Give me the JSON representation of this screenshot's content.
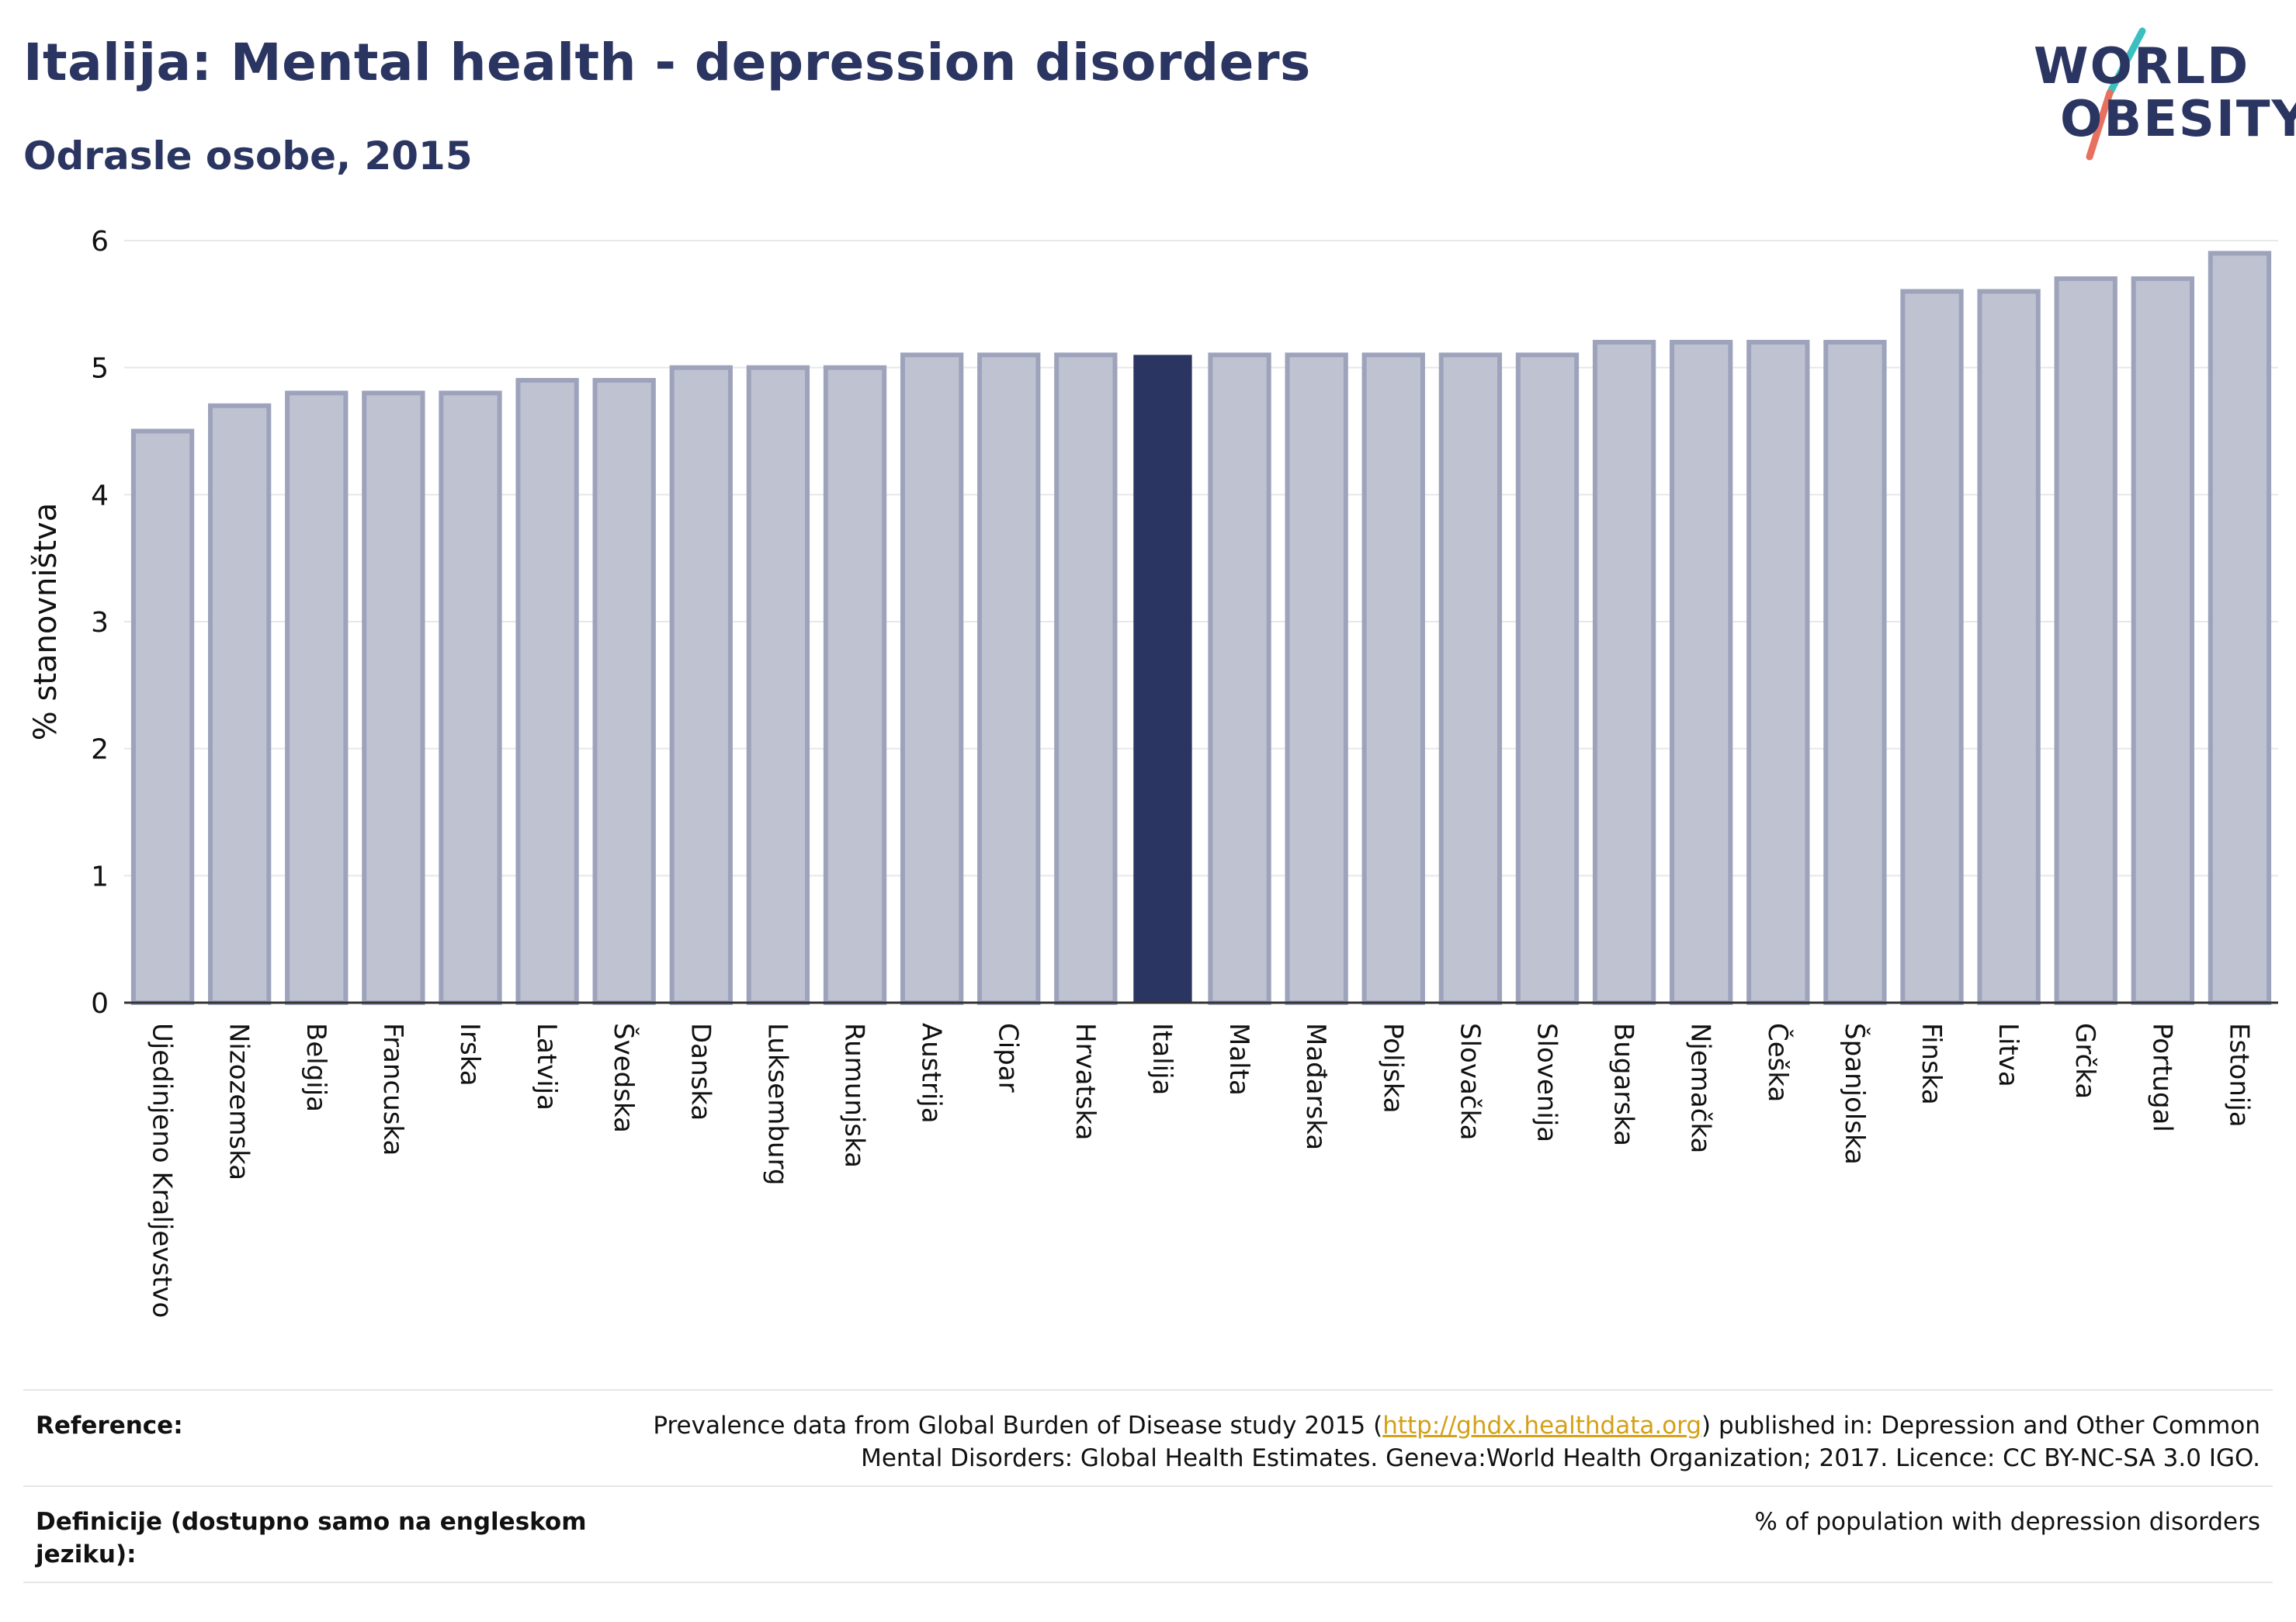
{
  "header": {
    "title": "Italija: Mental health - depression disorders",
    "subtitle": "Odrasle osobe, 2015"
  },
  "logo": {
    "line1": "WORLD",
    "line2": "OBESITY",
    "colors": {
      "text": "#2b3561",
      "slash_top": "#3bbfc0",
      "slash_bottom": "#e8705f"
    }
  },
  "chart_data": {
    "type": "bar",
    "ylabel": "% stanovništva",
    "xlabel": "",
    "ylim": [
      0,
      6
    ],
    "yticks": [
      0,
      1,
      2,
      3,
      4,
      5,
      6
    ],
    "grid": true,
    "highlight": "Italija",
    "colors": {
      "bar": "#bfc2d1",
      "bar_border": "#9ea3bc",
      "highlight": "#2b3561"
    },
    "categories": [
      "Ujedinjeno Kraljevstvo",
      "Nizozemska",
      "Belgija",
      "Francuska",
      "Irska",
      "Latvija",
      "Švedska",
      "Danska",
      "Luksemburg",
      "Rumunjska",
      "Austrija",
      "Cipar",
      "Hrvatska",
      "Italija",
      "Malta",
      "Mađarska",
      "Poljska",
      "Slovačka",
      "Slovenija",
      "Bugarska",
      "Njemačka",
      "Češka",
      "Španjolska",
      "Finska",
      "Litva",
      "Grčka",
      "Portugal",
      "Estonija"
    ],
    "values": [
      4.5,
      4.7,
      4.8,
      4.8,
      4.8,
      4.9,
      4.9,
      5.0,
      5.0,
      5.0,
      5.1,
      5.1,
      5.1,
      5.1,
      5.1,
      5.1,
      5.1,
      5.1,
      5.1,
      5.2,
      5.2,
      5.2,
      5.2,
      5.6,
      5.6,
      5.7,
      5.7,
      5.9
    ]
  },
  "footer": {
    "reference_label": "Reference:",
    "reference_pre": "Prevalence data from Global Burden of Disease study 2015 (",
    "reference_link": "http://ghdx.healthdata.org",
    "reference_post": ") published in: Depression and Other Common",
    "reference_line2": "Mental Disorders: Global Health Estimates. Geneva:World Health Organization; 2017. Licence: CC BY-NC-SA 3.0 IGO.",
    "definition_label": "Definicije (dostupno samo na engleskom jeziku):",
    "definition_value": "% of population with depression disorders"
  }
}
